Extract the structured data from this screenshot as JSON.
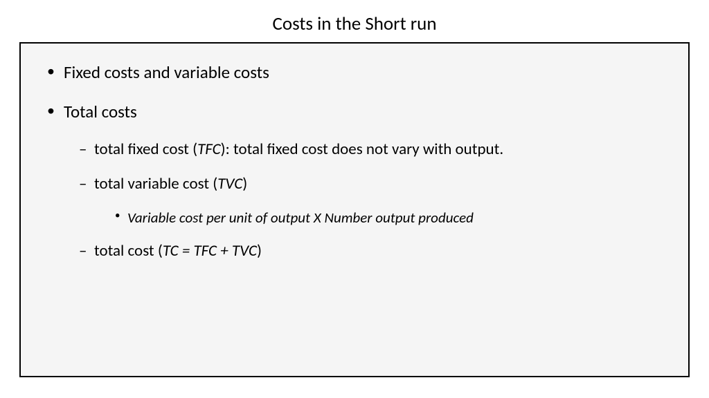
{
  "colors": {
    "page_bg": "#ffffff",
    "box_bg": "#f5f5f5",
    "box_border": "#000000",
    "text": "#000000"
  },
  "typography": {
    "title_fontsize": 27,
    "level1_fontsize": 25,
    "level2_fontsize": 23,
    "level3_fontsize": 21,
    "font_family": "Calibri"
  },
  "title": "Costs in the Short run",
  "bullets": {
    "b1": "Fixed costs and variable costs",
    "b2": "Total costs",
    "b2_1_pre": "total fixed cost (",
    "b2_1_abbr": "TFC",
    "b2_1_post": "): total fixed cost does not vary with output.",
    "b2_2_pre": "total variable cost (",
    "b2_2_abbr": "TVC",
    "b2_2_post": ")",
    "b2_2_1": "Variable cost per unit of output X Number output produced",
    "b2_3_pre": "total cost (",
    "b2_3_abbr": "TC = TFC + TVC",
    "b2_3_post": ")"
  }
}
